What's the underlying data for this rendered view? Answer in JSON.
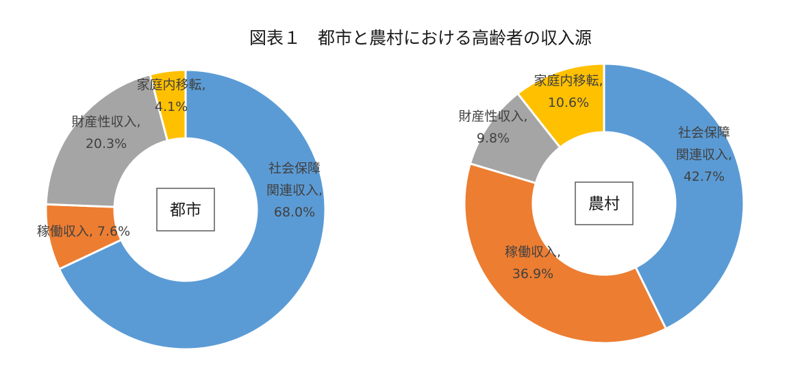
{
  "title": "図表１　都市と農村における高齢者の収入源",
  "chart_data": [
    {
      "type": "pie",
      "subtype": "donut",
      "center_label": "都市",
      "slices": [
        {
          "category": "社会保障関連収入",
          "value": 68.0,
          "color": "#5b9bd5",
          "label_lines": [
            "社会保障",
            "関連収入,",
            "68.0%"
          ]
        },
        {
          "category": "稼働収入",
          "value": 7.6,
          "color": "#ed7d31",
          "label_lines": [
            "稼働収入, 7.6%"
          ]
        },
        {
          "category": "財産性収入",
          "value": 20.3,
          "color": "#a5a5a5",
          "label_lines": [
            "財産性収入,",
            "20.3%"
          ]
        },
        {
          "category": "家庭内移転",
          "value": 4.1,
          "color": "#ffc000",
          "label_lines": [
            "家庭内移転,",
            "4.1%"
          ]
        }
      ]
    },
    {
      "type": "pie",
      "subtype": "donut",
      "center_label": "農村",
      "slices": [
        {
          "category": "社会保障関連収入",
          "value": 42.7,
          "color": "#5b9bd5",
          "label_lines": [
            "社会保障",
            "関連収入,",
            "42.7%"
          ]
        },
        {
          "category": "稼働収入",
          "value": 36.9,
          "color": "#ed7d31",
          "label_lines": [
            "稼働収入,",
            "36.9%"
          ]
        },
        {
          "category": "財産性収入",
          "value": 9.8,
          "color": "#a5a5a5",
          "label_lines": [
            "財産性収入,",
            "9.8%"
          ]
        },
        {
          "category": "家庭内移転",
          "value": 10.6,
          "color": "#ffc000",
          "label_lines": [
            "家庭内移転,",
            "10.6%"
          ]
        }
      ]
    }
  ]
}
